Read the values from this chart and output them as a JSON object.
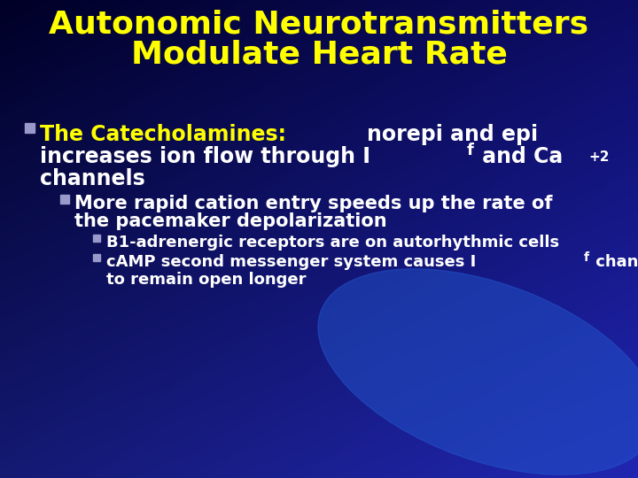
{
  "title_line1": "Autonomic Neurotransmitters",
  "title_line2": "Modulate Heart Rate",
  "title_color": "#FFFF00",
  "title_fontsize": 26,
  "bg_color": "#1a3a99",
  "bg_gradient_top": "#000033",
  "bg_gradient_bottom": "#1a4ab0",
  "bullet1_yellow": "The Catecholamines: ",
  "bullet1_white_1": "norepi and epi",
  "bullet1_white_2": "increases ion flow through I",
  "bullet1_sub_f": "f",
  "bullet1_white_3": " and Ca",
  "bullet1_sup_2": "+2",
  "bullet1_white_4": "channels",
  "bullet2_text1": "More rapid cation entry speeds up the rate of",
  "bullet2_text2": "the pacemaker depolarization",
  "bullet3a": "B1-adrenergic receptors are on autorhythmic cells",
  "bullet3b_1": "cAMP second messenger system causes I",
  "bullet3b_sub": "f",
  "bullet3b_2": " channels",
  "bullet3b_3": "to remain open longer",
  "yellow": "#FFFF00",
  "white": "#FFFFFF",
  "bullet_sq_color": "#9999CC",
  "bullet_sq2_color": "#9999CC",
  "bullet_sq3_color": "#9999CC",
  "title_fs": 26,
  "fs1": 17,
  "fs2": 15,
  "fs3": 13,
  "figw": 7.2,
  "figh": 5.4,
  "dpi": 100
}
